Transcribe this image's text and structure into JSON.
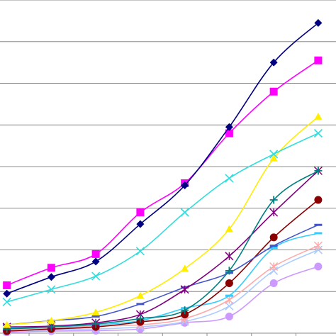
{
  "chart_data": {
    "type": "line",
    "title": "",
    "xlabel": "",
    "ylabel": "",
    "x": [
      1,
      2,
      3,
      4,
      5,
      6,
      7,
      8
    ],
    "xlim": [
      0.4,
      8.4
    ],
    "ylim": [
      0,
      8
    ],
    "grid": "horizontal",
    "legend": "none",
    "series": [
      {
        "color": "#000080",
        "marker": "diamond",
        "values": [
          0.95,
          1.35,
          1.72,
          2.62,
          3.55,
          4.95,
          6.5,
          7.45
        ]
      },
      {
        "color": "#ff00ff",
        "marker": "square",
        "values": [
          1.15,
          1.57,
          1.9,
          2.9,
          3.6,
          4.8,
          5.8,
          6.55
        ]
      },
      {
        "color": "#33dddd",
        "marker": "x",
        "values": [
          0.75,
          1.05,
          1.37,
          1.97,
          2.9,
          3.72,
          4.3,
          4.8
        ]
      },
      {
        "color": "#ffee00",
        "marker": "triangle",
        "values": [
          0.2,
          0.3,
          0.5,
          0.9,
          1.55,
          2.5,
          4.2,
          5.2
        ]
      },
      {
        "color": "#008080",
        "marker": "plus",
        "values": [
          0.1,
          0.15,
          0.22,
          0.35,
          0.55,
          1.5,
          3.2,
          3.9
        ]
      },
      {
        "color": "#800080",
        "marker": "star",
        "values": [
          0.15,
          0.17,
          0.25,
          0.45,
          1.05,
          1.85,
          2.9,
          3.9
        ]
      },
      {
        "color": "#4455cc",
        "marker": "dash",
        "values": [
          0.2,
          0.3,
          0.4,
          0.7,
          1.1,
          1.45,
          2.1,
          2.6
        ]
      },
      {
        "color": "#8b0000",
        "marker": "circle",
        "values": [
          0.05,
          0.1,
          0.15,
          0.27,
          0.45,
          1.2,
          2.3,
          3.2
        ]
      },
      {
        "color": "#33ccff",
        "marker": "dash",
        "values": [
          0.12,
          0.15,
          0.2,
          0.3,
          0.6,
          0.9,
          2.05,
          2.4
        ]
      },
      {
        "color": "#ffaaaa",
        "marker": "star",
        "values": [
          0.1,
          0.12,
          0.17,
          0.2,
          0.35,
          0.8,
          1.6,
          2.1
        ]
      },
      {
        "color": "#aaccff",
        "marker": "x",
        "values": [
          0.05,
          0.08,
          0.1,
          0.15,
          0.28,
          0.65,
          1.5,
          2.0
        ]
      },
      {
        "color": "#cc99ff",
        "marker": "circle",
        "values": [
          0.02,
          0.05,
          0.06,
          0.1,
          0.25,
          0.4,
          1.2,
          1.6
        ]
      }
    ]
  }
}
